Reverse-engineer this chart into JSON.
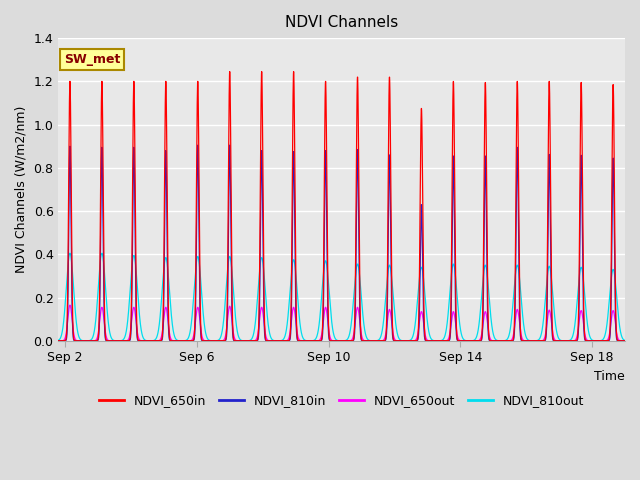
{
  "title": "NDVI Channels",
  "xlabel": "Time",
  "ylabel": "NDVI Channels (W/m2/nm)",
  "ylim": [
    0.0,
    1.4
  ],
  "yticks": [
    0.0,
    0.2,
    0.4,
    0.6,
    0.8,
    1.0,
    1.2,
    1.4
  ],
  "background_color": "#dcdcdc",
  "axes_facecolor": "#e8e8e8",
  "grid_color": "white",
  "legend_entries": [
    "NDVI_650in",
    "NDVI_810in",
    "NDVI_650out",
    "NDVI_810out"
  ],
  "line_colors": [
    "#ff0000",
    "#2222cc",
    "#ff00ff",
    "#00ddee"
  ],
  "annotation_text": "SW_met",
  "annotation_bg": "#ffff99",
  "annotation_border": "#aa8800",
  "annotation_text_color": "#880000",
  "num_cycles": 18,
  "period": 0.97,
  "start_day": 2.0,
  "total_days": 17.5,
  "peaks_650in": [
    1.2,
    1.2,
    1.2,
    1.2,
    1.2,
    1.245,
    1.245,
    1.245,
    1.2,
    1.22,
    1.22,
    1.075,
    1.2,
    1.195,
    1.2,
    1.2,
    1.195,
    1.185
  ],
  "peaks_810in": [
    0.9,
    0.895,
    0.895,
    0.88,
    0.905,
    0.905,
    0.88,
    0.875,
    0.88,
    0.885,
    0.86,
    0.63,
    0.855,
    0.855,
    0.895,
    0.862,
    0.858,
    0.845
  ],
  "peaks_650out": [
    0.165,
    0.155,
    0.155,
    0.155,
    0.155,
    0.16,
    0.155,
    0.155,
    0.155,
    0.155,
    0.145,
    0.135,
    0.135,
    0.135,
    0.145,
    0.142,
    0.14,
    0.14
  ],
  "peaks_810out": [
    0.405,
    0.405,
    0.395,
    0.385,
    0.39,
    0.39,
    0.385,
    0.375,
    0.37,
    0.355,
    0.35,
    0.34,
    0.355,
    0.35,
    0.35,
    0.345,
    0.34,
    0.33
  ],
  "xtick_positions": [
    2,
    6,
    10,
    14,
    18
  ],
  "xtick_labels": [
    "Sep 2",
    "Sep 6",
    "Sep 10",
    "Sep 14",
    "Sep 18"
  ],
  "figsize": [
    6.4,
    4.8
  ],
  "dpi": 100
}
